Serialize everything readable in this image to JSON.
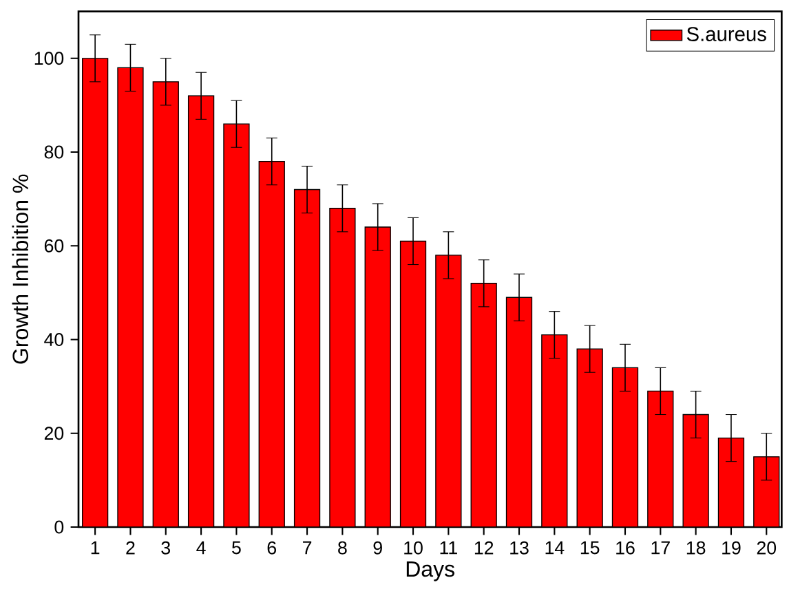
{
  "chart_data": {
    "type": "bar",
    "xlabel": "Days",
    "ylabel": "Growth Inhibition %",
    "categories": [
      "1",
      "2",
      "3",
      "4",
      "5",
      "6",
      "7",
      "8",
      "9",
      "10",
      "11",
      "12",
      "13",
      "14",
      "15",
      "16",
      "17",
      "18",
      "19",
      "20"
    ],
    "series": [
      {
        "name": "S.aureus",
        "color": "#ff0000",
        "values": [
          100,
          98,
          95,
          92,
          86,
          78,
          72,
          68,
          64,
          61,
          58,
          52,
          49,
          41,
          38,
          34,
          29,
          24,
          19,
          15
        ],
        "errors": [
          5,
          5,
          5,
          5,
          5,
          5,
          5,
          5,
          5,
          5,
          5,
          5,
          5,
          5,
          5,
          5,
          5,
          5,
          5,
          5
        ]
      }
    ],
    "ylim": [
      0,
      110
    ],
    "yticks": [
      0,
      20,
      40,
      60,
      80,
      100
    ],
    "grid": false,
    "legend": "top right"
  }
}
